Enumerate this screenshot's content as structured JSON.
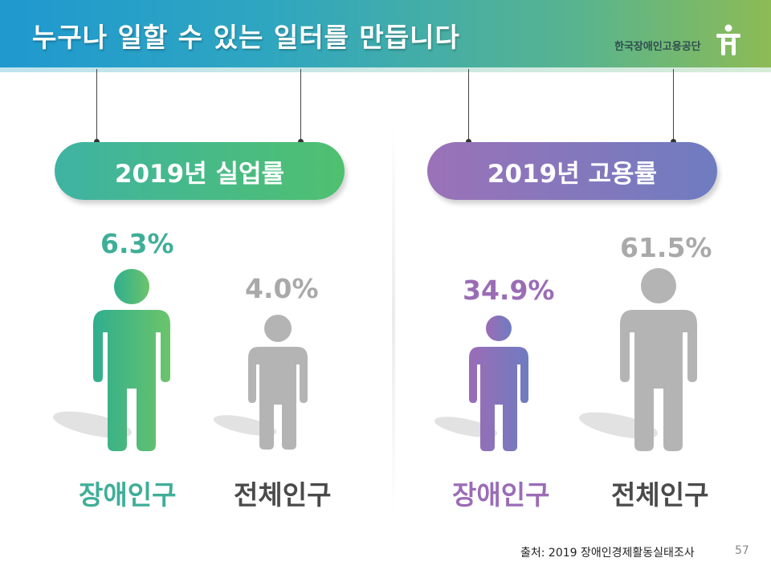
{
  "header": {
    "title": "누구나 일할 수 있는 일터를 만듭니다",
    "org_name": "한국장애인고용공단"
  },
  "panels": [
    {
      "heading": "2019년 실업률",
      "accent": "#3fb3a2",
      "figures": [
        {
          "group": "장애인구",
          "value": "6.3%",
          "color": "#3fae98"
        },
        {
          "group": "전체인구",
          "value": "4.0%",
          "color": "#b4b4b4"
        }
      ]
    },
    {
      "heading": "2019년 고용률",
      "accent": "#8a76bb",
      "figures": [
        {
          "group": "장애인구",
          "value": "34.9%",
          "color": "#9b6cb6"
        },
        {
          "group": "전체인구",
          "value": "61.5%",
          "color": "#b4b4b4"
        }
      ]
    }
  ],
  "footer": {
    "source": "출처: 2019 장애인경제활동실태조사",
    "page_number": "57"
  },
  "icons": [
    "person-icon",
    "logo-icon"
  ]
}
